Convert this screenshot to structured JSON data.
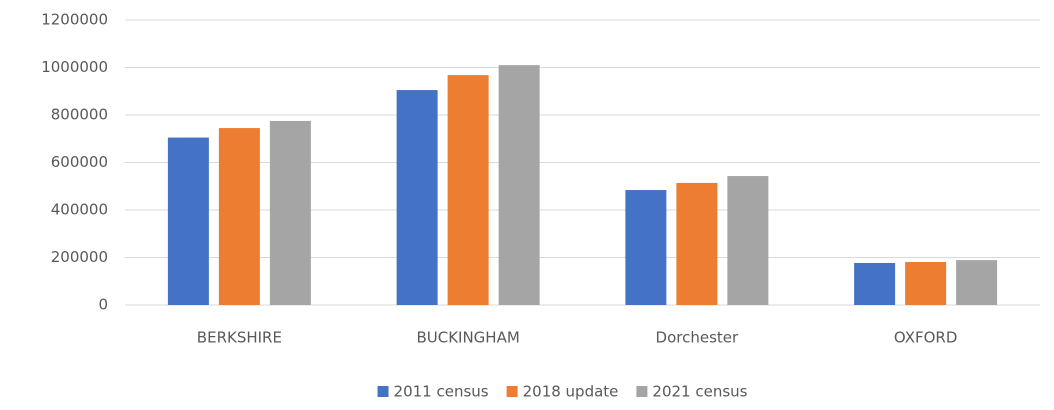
{
  "chart_data": {
    "type": "bar",
    "categories": [
      "BERKSHIRE",
      "BUCKINGHAM",
      "Dorchester",
      "OXFORD"
    ],
    "series": [
      {
        "name": "2011 census",
        "color": "#4472c4",
        "values": [
          705000,
          905000,
          484000,
          177000
        ]
      },
      {
        "name": "2018 update",
        "color": "#ed7d31",
        "values": [
          745000,
          968000,
          514000,
          181000
        ]
      },
      {
        "name": "2021 census",
        "color": "#a5a5a5",
        "values": [
          775000,
          1010000,
          543000,
          189000
        ]
      }
    ],
    "ylim": [
      0,
      1200000
    ],
    "yticks": [
      0,
      200000,
      400000,
      600000,
      800000,
      1000000,
      1200000
    ],
    "grid": true,
    "legend": "bottom"
  }
}
